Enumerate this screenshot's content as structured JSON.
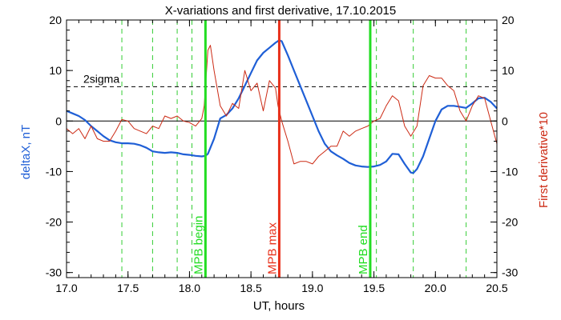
{
  "colors": {
    "background": "#ffffff",
    "axis": "#000000",
    "deltax_line": "#1f5fd6",
    "derivative_line": "#cc2a14",
    "mpb_marker": "#22dd22",
    "mpb_max_marker": "#e8301a",
    "dashed_green": "#33cc33"
  },
  "chart_data": {
    "type": "line",
    "title": "X-variations and first derivative, 17.10.2015",
    "xlabel": "UT, hours",
    "ylabel_left": "deltaX, nT",
    "ylabel_right": "First derivative*10",
    "xlim": [
      17.0,
      20.5
    ],
    "ylim": [
      -31,
      20
    ],
    "x_ticks": [
      17.0,
      17.5,
      18.0,
      18.5,
      19.0,
      19.5,
      20.0,
      20.5
    ],
    "x_tick_labels": [
      "17.0",
      "17.5",
      "18.0",
      "18.5",
      "19.0",
      "19.5",
      "20.0",
      "20.5"
    ],
    "y_ticks": [
      -30,
      -20,
      -10,
      0,
      10,
      20
    ],
    "y_tick_labels": [
      "-30",
      "-20",
      "-10",
      "0",
      "10",
      "20"
    ],
    "zero_line": 0,
    "sigma_line": {
      "value": 6.8,
      "label": "2sigma"
    },
    "vertical_dashed_lines": [
      17.45,
      17.7,
      17.9,
      18.02,
      19.52,
      19.82,
      20.25
    ],
    "markers": [
      {
        "x": 18.13,
        "label": "MPB begin",
        "color_key": "mpb_marker"
      },
      {
        "x": 18.73,
        "label": "MPB max",
        "color_key": "mpb_max_marker"
      },
      {
        "x": 19.47,
        "label": "MPB end",
        "color_key": "mpb_marker"
      }
    ],
    "series": [
      {
        "name": "deltaX, nT",
        "color_key": "deltax_line",
        "x": [
          17.0,
          17.05,
          17.1,
          17.15,
          17.2,
          17.25,
          17.3,
          17.35,
          17.4,
          17.45,
          17.5,
          17.55,
          17.6,
          17.65,
          17.7,
          17.75,
          17.8,
          17.85,
          17.9,
          17.95,
          18.0,
          18.05,
          18.1,
          18.13,
          18.15,
          18.2,
          18.25,
          18.3,
          18.35,
          18.4,
          18.45,
          18.5,
          18.55,
          18.6,
          18.65,
          18.7,
          18.73,
          18.75,
          18.8,
          18.85,
          18.9,
          18.95,
          19.0,
          19.05,
          19.1,
          19.15,
          19.2,
          19.25,
          19.3,
          19.35,
          19.4,
          19.45,
          19.5,
          19.55,
          19.6,
          19.65,
          19.7,
          19.75,
          19.8,
          19.82,
          19.85,
          19.9,
          19.95,
          20.0,
          20.05,
          20.1,
          20.15,
          20.2,
          20.25,
          20.3,
          20.35,
          20.4,
          20.45,
          20.5
        ],
        "values": [
          2.0,
          1.5,
          1.0,
          0.2,
          -1.0,
          -2.0,
          -3.0,
          -3.8,
          -4.2,
          -4.4,
          -4.4,
          -4.5,
          -4.8,
          -5.3,
          -6.0,
          -6.2,
          -6.3,
          -6.2,
          -6.3,
          -6.6,
          -6.7,
          -6.9,
          -7.0,
          -6.9,
          -6.5,
          -3.5,
          0.5,
          1.2,
          2.5,
          4.5,
          7.0,
          9.5,
          12.0,
          13.5,
          14.5,
          15.5,
          16.0,
          15.8,
          13.0,
          10.0,
          7.0,
          4.0,
          1.0,
          -2.0,
          -4.5,
          -6.0,
          -6.8,
          -7.5,
          -8.3,
          -8.8,
          -9.0,
          -9.1,
          -9.0,
          -8.7,
          -8.0,
          -6.5,
          -6.6,
          -8.5,
          -10.2,
          -10.3,
          -9.5,
          -7.0,
          -3.5,
          0.0,
          2.3,
          3.0,
          3.0,
          2.8,
          2.6,
          3.5,
          4.5,
          4.6,
          3.8,
          2.5
        ]
      },
      {
        "name": "First derivative*10",
        "color_key": "derivative_line",
        "x": [
          17.0,
          17.05,
          17.1,
          17.15,
          17.2,
          17.25,
          17.3,
          17.35,
          17.4,
          17.45,
          17.5,
          17.55,
          17.6,
          17.65,
          17.7,
          17.75,
          17.8,
          17.85,
          17.9,
          17.95,
          18.0,
          18.05,
          18.1,
          18.12,
          18.15,
          18.17,
          18.2,
          18.25,
          18.3,
          18.35,
          18.4,
          18.45,
          18.5,
          18.55,
          18.6,
          18.65,
          18.7,
          18.72,
          18.75,
          18.8,
          18.85,
          18.9,
          18.95,
          19.0,
          19.05,
          19.1,
          19.15,
          19.2,
          19.25,
          19.3,
          19.35,
          19.4,
          19.45,
          19.5,
          19.55,
          19.6,
          19.65,
          19.7,
          19.75,
          19.8,
          19.85,
          19.9,
          19.95,
          20.0,
          20.05,
          20.1,
          20.15,
          20.2,
          20.25,
          20.3,
          20.35,
          20.4,
          20.45,
          20.5
        ],
        "values": [
          -1.5,
          -2.5,
          -1.5,
          -3.5,
          -1.0,
          -3.5,
          -4.0,
          -4.0,
          -2.0,
          0.3,
          0.0,
          -1.5,
          -2.0,
          -2.5,
          -1.0,
          -1.5,
          1.0,
          0.5,
          1.0,
          0.0,
          -0.3,
          -1.0,
          0.5,
          3.0,
          14.0,
          15.0,
          10.0,
          3.0,
          1.0,
          3.5,
          2.5,
          10.0,
          6.0,
          7.5,
          2.0,
          8.0,
          6.5,
          3.0,
          0.0,
          -4.0,
          -8.5,
          -8.0,
          -8.0,
          -8.5,
          -7.0,
          -6.0,
          -5.0,
          -5.0,
          -2.0,
          -3.0,
          -2.0,
          -1.5,
          -1.0,
          0.0,
          0.5,
          3.0,
          5.0,
          4.0,
          -1.0,
          -3.0,
          -1.0,
          7.0,
          9.0,
          8.5,
          8.5,
          7.0,
          6.0,
          2.0,
          0.0,
          3.0,
          5.0,
          4.5,
          0.0,
          -4.5
        ]
      }
    ]
  }
}
